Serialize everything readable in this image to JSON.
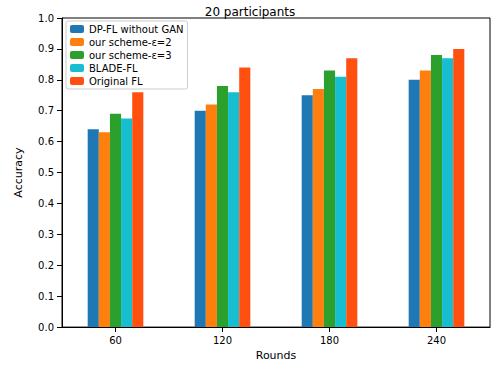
{
  "chart_data": {
    "type": "bar",
    "title": "20 participants",
    "x_label": "Rounds",
    "y_label": "Accuracy",
    "categories": [
      "60",
      "120",
      "180",
      "240"
    ],
    "series": [
      {
        "name": "DP-FL without GAN",
        "color": "#1f77b4",
        "values": [
          0.64,
          0.7,
          0.75,
          0.8
        ]
      },
      {
        "name": "our scheme-ε=2",
        "color": "#ff7f0e",
        "values": [
          0.63,
          0.72,
          0.77,
          0.83
        ]
      },
      {
        "name": "our scheme-ε=3",
        "color": "#2ca02c",
        "values": [
          0.69,
          0.78,
          0.83,
          0.88
        ]
      },
      {
        "name": "BLADE-FL",
        "color": "#17becf",
        "values": [
          0.675,
          0.76,
          0.81,
          0.87
        ]
      },
      {
        "name": "Original FL",
        "color": "#ff5010",
        "values": [
          0.76,
          0.84,
          0.87,
          0.9
        ]
      }
    ],
    "ylim": [
      0,
      1
    ],
    "yticks": [
      {
        "value": 0,
        "label": "0.0"
      },
      0.1,
      0.2,
      0.3,
      0.4,
      0.5,
      0.6,
      0.7,
      0.8,
      0.9,
      {
        "value": 1,
        "label": "1.0"
      }
    ],
    "grid": false,
    "legend": "upper left"
  }
}
